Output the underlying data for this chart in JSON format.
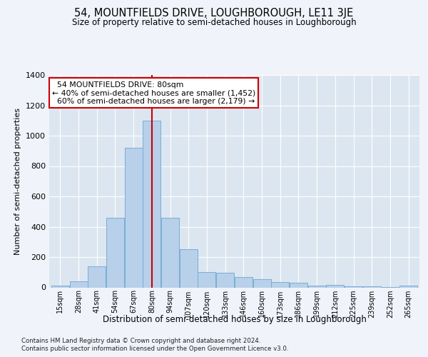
{
  "title": "54, MOUNTFIELDS DRIVE, LOUGHBOROUGH, LE11 3JE",
  "subtitle": "Size of property relative to semi-detached houses in Loughborough",
  "xlabel": "Distribution of semi-detached houses by size in Loughborough",
  "ylabel": "Number of semi-detached properties",
  "footnote1": "Contains HM Land Registry data © Crown copyright and database right 2024.",
  "footnote2": "Contains public sector information licensed under the Open Government Licence v3.0.",
  "property_label": "54 MOUNTFIELDS DRIVE: 80sqm",
  "smaller_pct": 40,
  "smaller_count": "1,452",
  "larger_pct": 60,
  "larger_count": "2,179",
  "bar_color": "#b8d0ea",
  "bar_edge_color": "#7aadd4",
  "highlight_line_color": "#cc0000",
  "background_color": "#dce6f0",
  "grid_color": "#ffffff",
  "fig_bg_color": "#f0f4fa",
  "bin_labels": [
    "15sqm",
    "28sqm",
    "41sqm",
    "54sqm",
    "67sqm",
    "80sqm",
    "94sqm",
    "107sqm",
    "120sqm",
    "133sqm",
    "146sqm",
    "160sqm",
    "173sqm",
    "186sqm",
    "199sqm",
    "212sqm",
    "225sqm",
    "239sqm",
    "252sqm",
    "265sqm"
  ],
  "values": [
    10,
    40,
    140,
    460,
    920,
    1100,
    460,
    250,
    100,
    95,
    70,
    55,
    35,
    30,
    10,
    15,
    5,
    8,
    3,
    12
  ],
  "property_bar_idx": 5,
  "ylim": [
    0,
    1400
  ],
  "yticks": [
    0,
    200,
    400,
    600,
    800,
    1000,
    1200,
    1400
  ],
  "n_bins": 20
}
